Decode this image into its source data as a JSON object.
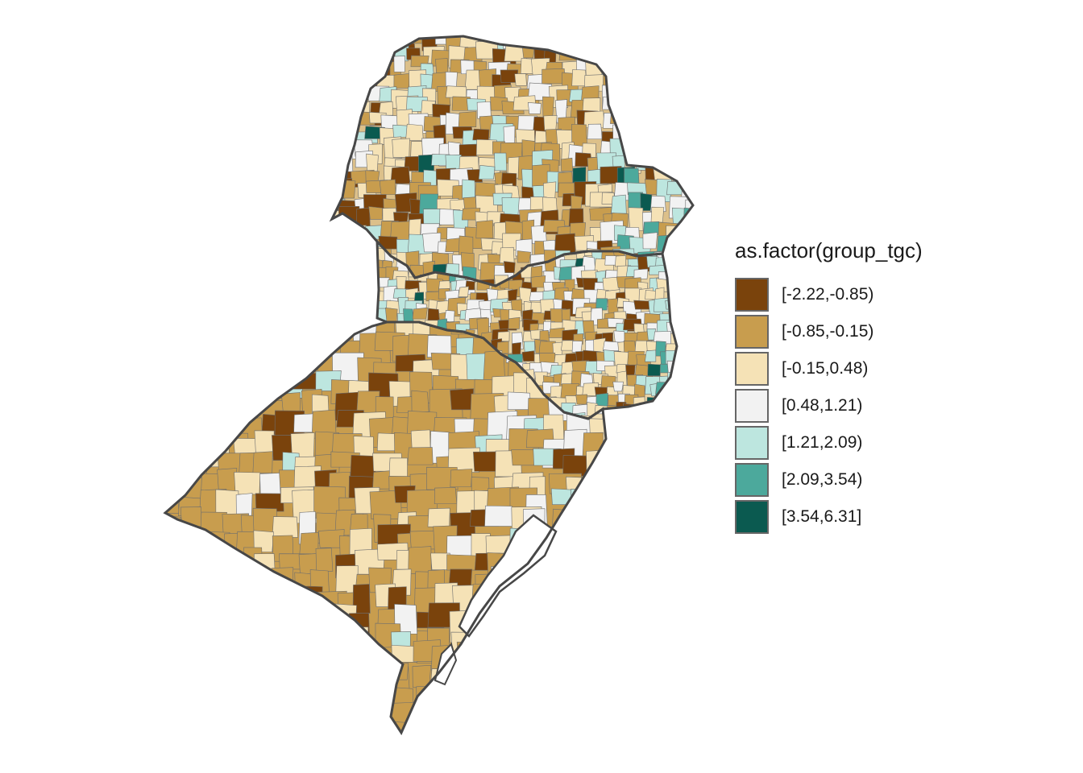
{
  "legend": {
    "title": "as.factor(group_tgc)",
    "classes": [
      {
        "label": "[-2.22,-0.85)",
        "color": "#7a430c"
      },
      {
        "label": "[-0.85,-0.15)",
        "color": "#c89d4e"
      },
      {
        "label": "[-0.15,0.48)",
        "color": "#f5e2b6"
      },
      {
        "label": "[0.48,1.21)",
        "color": "#f2f2f2"
      },
      {
        "label": "[1.21,2.09)",
        "color": "#bde6df"
      },
      {
        "label": "[2.09,3.54)",
        "color": "#4ca99c"
      },
      {
        "label": "[3.54,6.31]",
        "color": "#0b5a50"
      }
    ]
  },
  "map": {
    "state_border_color": "#474747",
    "municipality_border_color": "#6e6e6e"
  }
}
